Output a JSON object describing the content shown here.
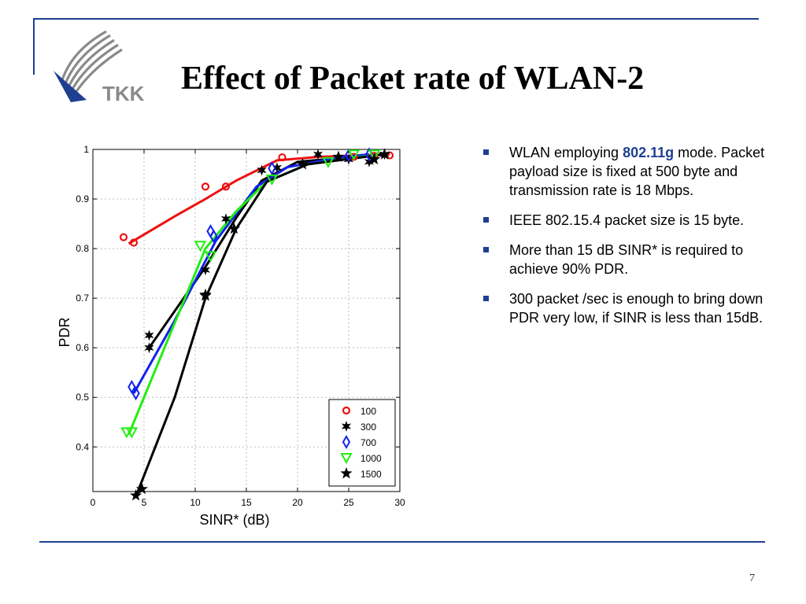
{
  "slide": {
    "title": "Effect of  Packet rate of  WLAN-2",
    "logo_text": "TKK",
    "page_number": "7"
  },
  "bullets": [
    {
      "pre": "WLAN employing ",
      "highlight": "802.11g",
      "post": " mode. Packet payload size is fixed at 500 byte and transmission rate is 18 Mbps."
    },
    {
      "pre": "IEEE 802.15.4 packet size is 15 byte.",
      "highlight": "",
      "post": ""
    },
    {
      "pre": "More than 15 dB SINR* is required to achieve 90% PDR.",
      "highlight": "",
      "post": ""
    },
    {
      "pre": "300 packet /sec is enough to bring  down PDR very low, if SINR is less than 15dB.",
      "highlight": "",
      "post": ""
    }
  ],
  "colors": {
    "accent": "#1f3f91",
    "s100": "#ee1111",
    "s300": "#000000",
    "s700": "#1122ee",
    "s1000": "#22ee11",
    "s1500": "#000000"
  },
  "chart_data": {
    "type": "scatter",
    "xlabel": "SINR* (dB)",
    "ylabel": "PDR",
    "xlim": [
      0,
      30
    ],
    "ylim": [
      0.31,
      1.0
    ],
    "xticks": [
      "0",
      "5",
      "10",
      "15",
      "20",
      "25",
      "30"
    ],
    "yticks": [
      "0.4",
      "0.5",
      "0.6",
      "0.7",
      "0.8",
      "0.9",
      "1"
    ],
    "grid": true,
    "legend_position": "bottom-right",
    "series": [
      {
        "name": "100",
        "marker": "circle",
        "color": "#ee1111",
        "points": [
          [
            3,
            0.823
          ],
          [
            4,
            0.812
          ],
          [
            11,
            0.925
          ],
          [
            13,
            0.925
          ],
          [
            18.5,
            0.984
          ],
          [
            25.5,
            0.985
          ],
          [
            27.5,
            0.987
          ],
          [
            29,
            0.988
          ]
        ],
        "fit": [
          [
            3.5,
            0.81
          ],
          [
            8,
            0.865
          ],
          [
            11,
            0.9
          ],
          [
            14,
            0.937
          ],
          [
            18,
            0.978
          ],
          [
            22,
            0.985
          ],
          [
            29,
            0.99
          ]
        ]
      },
      {
        "name": "300",
        "marker": "star6",
        "color": "#000000",
        "points": [
          [
            5.5,
            0.625
          ],
          [
            5.5,
            0.6
          ],
          [
            11,
            0.757
          ],
          [
            13,
            0.86
          ],
          [
            16.5,
            0.958
          ],
          [
            18,
            0.963
          ],
          [
            22,
            0.99
          ],
          [
            25,
            0.98
          ],
          [
            27,
            0.975
          ],
          [
            28.5,
            0.99
          ]
        ],
        "fit": [
          [
            5.5,
            0.6
          ],
          [
            11,
            0.763
          ],
          [
            14,
            0.862
          ],
          [
            16.5,
            0.937
          ],
          [
            20,
            0.975
          ],
          [
            25,
            0.984
          ],
          [
            28.5,
            0.99
          ]
        ]
      },
      {
        "name": "700",
        "marker": "diamond",
        "color": "#1122ee",
        "points": [
          [
            3.8,
            0.521
          ],
          [
            4.2,
            0.508
          ],
          [
            11.5,
            0.835
          ],
          [
            11.8,
            0.825
          ],
          [
            17.5,
            0.962
          ],
          [
            25,
            0.988
          ],
          [
            27,
            0.99
          ]
        ],
        "fit": [
          [
            4,
            0.508
          ],
          [
            8,
            0.655
          ],
          [
            12,
            0.815
          ],
          [
            16,
            0.925
          ],
          [
            19,
            0.964
          ],
          [
            24,
            0.984
          ],
          [
            27,
            0.99
          ]
        ]
      },
      {
        "name": "1000",
        "marker": "triangle-down",
        "color": "#22ee11",
        "points": [
          [
            3.3,
            0.43
          ],
          [
            3.8,
            0.43
          ],
          [
            10.5,
            0.806
          ],
          [
            11.5,
            0.785
          ],
          [
            17.5,
            0.94
          ],
          [
            23,
            0.975
          ],
          [
            25.5,
            0.99
          ],
          [
            27.5,
            0.99
          ]
        ],
        "fit": [
          [
            3.5,
            0.425
          ],
          [
            7,
            0.6
          ],
          [
            11,
            0.8
          ],
          [
            14,
            0.875
          ],
          [
            17,
            0.935
          ],
          [
            21,
            0.97
          ],
          [
            28,
            0.99
          ]
        ]
      },
      {
        "name": "1500",
        "marker": "star5",
        "color": "#000000",
        "points": [
          [
            4.2,
            0.302
          ],
          [
            4.8,
            0.315
          ],
          [
            11,
            0.707
          ],
          [
            11,
            0.705
          ],
          [
            13.8,
            0.84
          ],
          [
            20.5,
            0.97
          ],
          [
            24,
            0.985
          ],
          [
            27.5,
            0.98
          ],
          [
            28.5,
            0.99
          ]
        ],
        "fit": [
          [
            4.2,
            0.3
          ],
          [
            8,
            0.5
          ],
          [
            11,
            0.7
          ],
          [
            14,
            0.84
          ],
          [
            17,
            0.935
          ],
          [
            21,
            0.97
          ],
          [
            28.5,
            0.99
          ]
        ]
      }
    ]
  }
}
